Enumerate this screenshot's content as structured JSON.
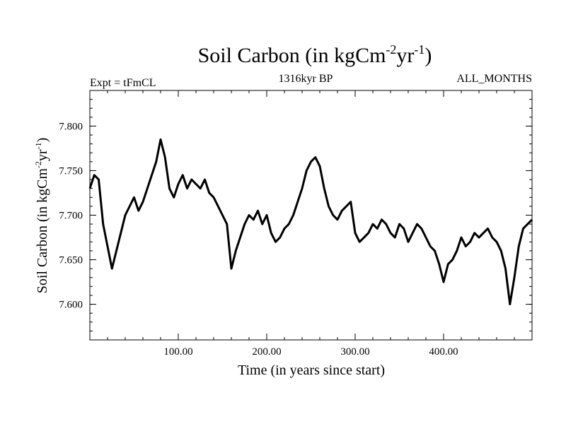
{
  "chart_data": {
    "type": "line",
    "title_main": "Soil Carbon (in kgCm",
    "title_sup1": "-2",
    "title_mid": "yr",
    "title_sup2": "-1",
    "title_end": ")",
    "expt_label": "Expt = tFmCL",
    "period_label": "1316kyr BP",
    "months_label": "ALL_MONTHS",
    "xlabel": "Time (in years since start)",
    "ylabel_main": "Soil Carbon (in kgCm",
    "ylabel_sup1": "-2",
    "ylabel_mid": "yr",
    "ylabel_sup2": "-1",
    "ylabel_end": ")",
    "xlim": [
      0,
      500
    ],
    "ylim": [
      7.56,
      7.84
    ],
    "x_ticks": [
      {
        "value": 100,
        "label": "100.00"
      },
      {
        "value": 200,
        "label": "200.00"
      },
      {
        "value": 300,
        "label": "300.00"
      },
      {
        "value": 400,
        "label": "400.00"
      }
    ],
    "y_ticks": [
      {
        "value": 7.6,
        "label": "7.600"
      },
      {
        "value": 7.65,
        "label": "7.650"
      },
      {
        "value": 7.7,
        "label": "7.700"
      },
      {
        "value": 7.75,
        "label": "7.750"
      },
      {
        "value": 7.8,
        "label": "7.800"
      }
    ],
    "line_color": "#000000",
    "series": [
      {
        "x": [
          0,
          5,
          10,
          15,
          20,
          25,
          30,
          35,
          40,
          45,
          50,
          55,
          60,
          65,
          70,
          75,
          80,
          85,
          90,
          95,
          100,
          105,
          110,
          115,
          120,
          125,
          130,
          135,
          140,
          145,
          150,
          155,
          160,
          165,
          170,
          175,
          180,
          185,
          190,
          195,
          200,
          205,
          210,
          215,
          220,
          225,
          230,
          235,
          240,
          245,
          250,
          255,
          260,
          265,
          270,
          275,
          280,
          285,
          290,
          295,
          300,
          305,
          310,
          315,
          320,
          325,
          330,
          335,
          340,
          345,
          350,
          355,
          360,
          365,
          370,
          375,
          380,
          385,
          390,
          395,
          400,
          405,
          410,
          415,
          420,
          425,
          430,
          435,
          440,
          445,
          450,
          455,
          460,
          465,
          470,
          475,
          480,
          485,
          490,
          495,
          500
        ],
        "values": [
          7.73,
          7.745,
          7.74,
          7.69,
          7.665,
          7.64,
          7.66,
          7.68,
          7.7,
          7.71,
          7.72,
          7.705,
          7.715,
          7.73,
          7.745,
          7.76,
          7.785,
          7.765,
          7.73,
          7.72,
          7.735,
          7.745,
          7.73,
          7.74,
          7.735,
          7.73,
          7.74,
          7.725,
          7.72,
          7.71,
          7.7,
          7.69,
          7.64,
          7.66,
          7.675,
          7.69,
          7.7,
          7.695,
          7.705,
          7.69,
          7.7,
          7.68,
          7.67,
          7.675,
          7.685,
          7.69,
          7.7,
          7.715,
          7.73,
          7.75,
          7.76,
          7.765,
          7.755,
          7.73,
          7.71,
          7.7,
          7.695,
          7.705,
          7.71,
          7.715,
          7.68,
          7.67,
          7.675,
          7.68,
          7.69,
          7.685,
          7.695,
          7.69,
          7.68,
          7.675,
          7.69,
          7.685,
          7.67,
          7.68,
          7.69,
          7.685,
          7.675,
          7.665,
          7.66,
          7.645,
          7.625,
          7.645,
          7.65,
          7.66,
          7.675,
          7.665,
          7.67,
          7.68,
          7.675,
          7.68,
          7.685,
          7.675,
          7.67,
          7.66,
          7.64,
          7.6,
          7.63,
          7.665,
          7.685,
          7.69,
          7.695
        ]
      }
    ]
  }
}
